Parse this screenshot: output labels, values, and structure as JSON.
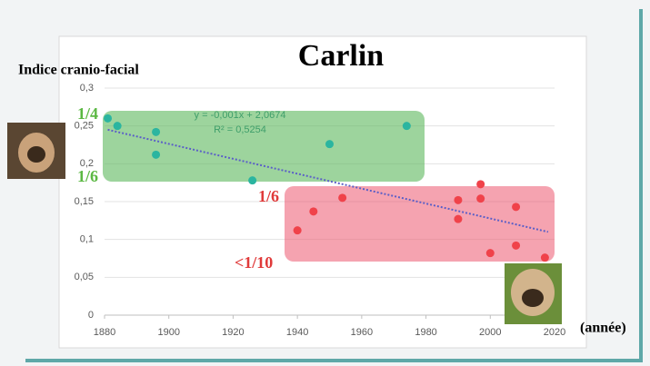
{
  "chart_data": {
    "type": "scatter",
    "title": "Carlin",
    "y_label": "Indice cranio-facial",
    "x_label": "(année)",
    "xlim": [
      1880,
      2020
    ],
    "xticks": [
      1880,
      1900,
      1920,
      1940,
      1960,
      1980,
      2000,
      2020
    ],
    "ylim": [
      0,
      0.3
    ],
    "yticks": [
      0,
      {
        "value": 0.05,
        "label": "0,05"
      },
      {
        "value": 0.1,
        "label": "0,1"
      },
      {
        "value": 0.15,
        "label": "0,15"
      },
      {
        "value": 0.2,
        "label": "0,2"
      },
      {
        "value": 0.25,
        "label": "0,25"
      },
      {
        "value": 0.3,
        "label": "0,3"
      }
    ],
    "grid": true,
    "series": [
      {
        "color": "#2bb5a0",
        "x": [
          1881,
          1884,
          1896,
          1896,
          1926,
          1950,
          1974
        ],
        "values": [
          0.26,
          0.25,
          0.242,
          0.212,
          0.178,
          0.226,
          0.25
        ]
      },
      {
        "color": "#f0424a",
        "x": [
          1940,
          1945,
          1954,
          1990,
          1990,
          1997,
          1997,
          2000,
          2008,
          2008,
          2017
        ],
        "values": [
          0.112,
          0.137,
          0.155,
          0.152,
          0.127,
          0.173,
          0.154,
          0.082,
          0.143,
          0.092,
          0.076
        ]
      }
    ],
    "trendline": {
      "color": "#5b5fc7",
      "x": [
        1881,
        2018
      ],
      "values": [
        0.245,
        0.11
      ]
    },
    "annotations": {
      "equation": "y = -0,001x + 2,0674",
      "r2": "R² = 0,5254",
      "green_top": "1/4",
      "green_bottom": "1/6",
      "red_top": "1/6",
      "red_bottom": "<1/10"
    }
  }
}
